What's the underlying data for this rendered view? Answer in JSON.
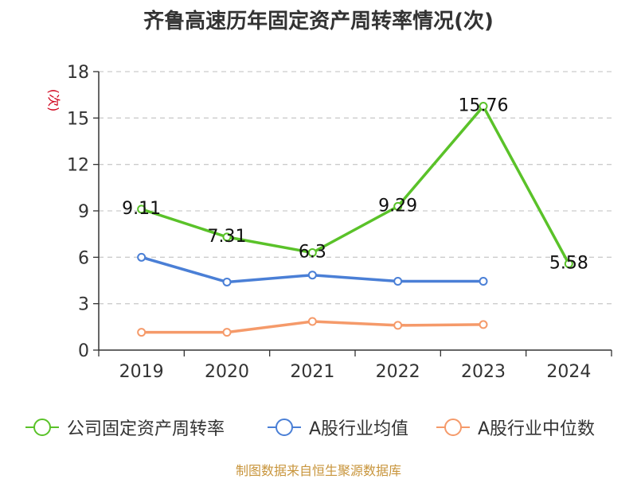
{
  "chart_data": {
    "type": "line",
    "title": "齐鲁高速历年固定资产周转率情况(次)",
    "ylabel": "(次)",
    "xlabel": "",
    "categories": [
      "2019",
      "2020",
      "2021",
      "2022",
      "2023",
      "2024"
    ],
    "ylim": [
      0,
      18
    ],
    "yticks": [
      "0",
      "3",
      "6",
      "9",
      "12",
      "15",
      "18"
    ],
    "grid": true,
    "legend_position": "bottom",
    "series": [
      {
        "name": "公司固定资产周转率",
        "color": "#5ac229",
        "values": [
          9.11,
          7.31,
          6.3,
          9.29,
          15.76,
          5.58
        ],
        "labels": [
          "9.11",
          "7.31",
          "6.3",
          "9.29",
          "15.76",
          "5.58"
        ]
      },
      {
        "name": "A股行业均值",
        "color": "#4a7fd6",
        "values": [
          6.0,
          4.4,
          4.85,
          4.45,
          4.45,
          null
        ]
      },
      {
        "name": "A股行业中位数",
        "color": "#f59a6a",
        "values": [
          1.15,
          1.15,
          1.85,
          1.6,
          1.65,
          null
        ]
      }
    ]
  },
  "source": "制图数据来自恒生聚源数据库"
}
